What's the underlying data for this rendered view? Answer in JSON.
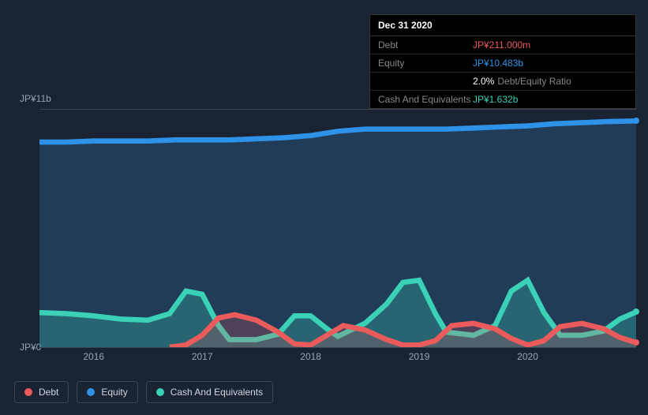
{
  "background_color": "#1a2332",
  "tooltip": {
    "date": "Dec 31 2020",
    "rows": [
      {
        "label": "Debt",
        "value": "JP¥211.000m",
        "color": "#eb5b5b"
      },
      {
        "label": "Equity",
        "value": "JP¥10.483b",
        "color": "#2e93e8"
      },
      {
        "label": "",
        "value": "2.0%",
        "sub": "Debt/Equity Ratio",
        "color": "#ffffff"
      },
      {
        "label": "Cash And Equivalents",
        "value": "JP¥1.632b",
        "color": "#3ad1b6"
      }
    ]
  },
  "chart": {
    "type": "area",
    "xlim": [
      2015.5,
      2021.0
    ],
    "ylim": [
      0,
      11
    ],
    "y_ticks": [
      {
        "v": 0,
        "label": "JP¥0"
      },
      {
        "v": 11,
        "label": "JP¥11b"
      }
    ],
    "x_ticks": [
      2016,
      2017,
      2018,
      2019,
      2020
    ],
    "axis_color": "#3a4550",
    "tick_color": "#9aa5b0",
    "tick_fontsize": 12,
    "series": [
      {
        "name": "Equity",
        "color": "#2e93e8",
        "fill": "rgba(46,110,160,0.35)",
        "line_width": 2,
        "points": [
          [
            2015.5,
            9.5
          ],
          [
            2015.75,
            9.5
          ],
          [
            2016.0,
            9.55
          ],
          [
            2016.25,
            9.55
          ],
          [
            2016.5,
            9.55
          ],
          [
            2016.75,
            9.6
          ],
          [
            2017.0,
            9.6
          ],
          [
            2017.25,
            9.6
          ],
          [
            2017.5,
            9.65
          ],
          [
            2017.75,
            9.7
          ],
          [
            2018.0,
            9.8
          ],
          [
            2018.25,
            10.0
          ],
          [
            2018.5,
            10.1
          ],
          [
            2018.75,
            10.1
          ],
          [
            2019.0,
            10.1
          ],
          [
            2019.25,
            10.1
          ],
          [
            2019.5,
            10.15
          ],
          [
            2019.75,
            10.2
          ],
          [
            2020.0,
            10.25
          ],
          [
            2020.25,
            10.35
          ],
          [
            2020.5,
            10.4
          ],
          [
            2020.75,
            10.45
          ],
          [
            2021.0,
            10.48
          ]
        ]
      },
      {
        "name": "Cash And Equivalents",
        "color": "#3ad1b6",
        "fill": "rgba(58,209,182,0.28)",
        "line_width": 2,
        "points": [
          [
            2015.5,
            1.6
          ],
          [
            2015.75,
            1.55
          ],
          [
            2016.0,
            1.45
          ],
          [
            2016.25,
            1.3
          ],
          [
            2016.5,
            1.25
          ],
          [
            2016.7,
            1.55
          ],
          [
            2016.85,
            2.6
          ],
          [
            2017.0,
            2.45
          ],
          [
            2017.15,
            1.0
          ],
          [
            2017.25,
            0.35
          ],
          [
            2017.5,
            0.35
          ],
          [
            2017.7,
            0.6
          ],
          [
            2017.85,
            1.45
          ],
          [
            2018.0,
            1.45
          ],
          [
            2018.15,
            0.85
          ],
          [
            2018.25,
            0.5
          ],
          [
            2018.5,
            1.1
          ],
          [
            2018.7,
            2.0
          ],
          [
            2018.85,
            3.0
          ],
          [
            2019.0,
            3.1
          ],
          [
            2019.15,
            1.55
          ],
          [
            2019.25,
            0.7
          ],
          [
            2019.5,
            0.55
          ],
          [
            2019.7,
            1.0
          ],
          [
            2019.85,
            2.6
          ],
          [
            2020.0,
            3.1
          ],
          [
            2020.15,
            1.6
          ],
          [
            2020.3,
            0.55
          ],
          [
            2020.5,
            0.55
          ],
          [
            2020.7,
            0.75
          ],
          [
            2020.85,
            1.3
          ],
          [
            2021.0,
            1.63
          ]
        ]
      },
      {
        "name": "Debt",
        "color": "#eb5b5b",
        "fill": "rgba(235,91,91,0.22)",
        "line_width": 2,
        "points": [
          [
            2016.7,
            0.0
          ],
          [
            2016.85,
            0.1
          ],
          [
            2017.0,
            0.55
          ],
          [
            2017.15,
            1.35
          ],
          [
            2017.3,
            1.5
          ],
          [
            2017.5,
            1.25
          ],
          [
            2017.7,
            0.7
          ],
          [
            2017.85,
            0.15
          ],
          [
            2018.0,
            0.1
          ],
          [
            2018.15,
            0.55
          ],
          [
            2018.3,
            1.0
          ],
          [
            2018.5,
            0.8
          ],
          [
            2018.7,
            0.35
          ],
          [
            2018.85,
            0.1
          ],
          [
            2019.0,
            0.1
          ],
          [
            2019.15,
            0.3
          ],
          [
            2019.3,
            1.0
          ],
          [
            2019.5,
            1.1
          ],
          [
            2019.7,
            0.85
          ],
          [
            2019.85,
            0.4
          ],
          [
            2020.0,
            0.1
          ],
          [
            2020.15,
            0.3
          ],
          [
            2020.3,
            0.95
          ],
          [
            2020.5,
            1.1
          ],
          [
            2020.7,
            0.85
          ],
          [
            2020.85,
            0.45
          ],
          [
            2021.0,
            0.21
          ]
        ]
      }
    ]
  },
  "legend": {
    "items": [
      {
        "label": "Debt",
        "color": "#eb5b5b"
      },
      {
        "label": "Equity",
        "color": "#2e93e8"
      },
      {
        "label": "Cash And Equivalents",
        "color": "#3ad1b6"
      }
    ],
    "border_color": "#3a4550",
    "text_color": "#cfd6dd",
    "fontsize": 12
  }
}
